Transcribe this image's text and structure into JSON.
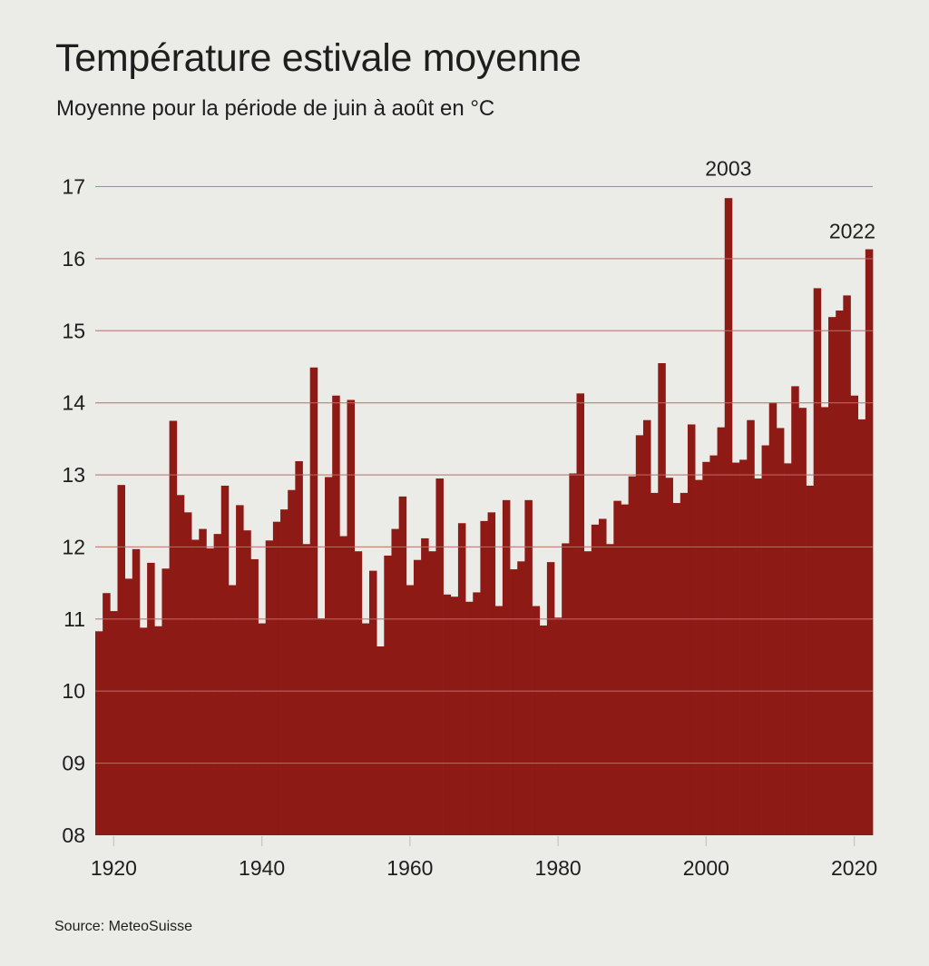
{
  "header": {
    "title": "Température estivale moyenne",
    "subtitle": "Moyenne pour la période de juin à août en °C"
  },
  "footer": {
    "source": "Source: MeteoSuisse"
  },
  "colors": {
    "background": "#ebebe7",
    "bar": "#8e1a16",
    "grid": "#c6c6c2",
    "grid_over_bar": "#c4756f",
    "text": "#1e1e1e"
  },
  "chart_data": {
    "type": "bar",
    "title": "Température estivale moyenne",
    "subtitle": "Moyenne pour la période de juin à août en °C",
    "xlabel": "",
    "ylabel": "",
    "ylim": [
      8,
      17
    ],
    "xlim": [
      1918,
      2022
    ],
    "grid": true,
    "y_ticks": [
      8,
      9,
      10,
      11,
      12,
      13,
      14,
      15,
      16,
      17
    ],
    "y_tick_labels": [
      "08",
      "09",
      "10",
      "11",
      "12",
      "13",
      "14",
      "15",
      "16",
      "17"
    ],
    "x_ticks": [
      1920,
      1940,
      1960,
      1980,
      2000,
      2020
    ],
    "x_tick_labels": [
      "1920",
      "1940",
      "1960",
      "1980",
      "2000",
      "2020"
    ],
    "annotations": [
      {
        "year": 2003,
        "text": "2003"
      },
      {
        "year": 2022,
        "text": "2022"
      }
    ],
    "source": "Source: MeteoSuisse",
    "years": [
      1918,
      1919,
      1920,
      1921,
      1922,
      1923,
      1924,
      1925,
      1926,
      1927,
      1928,
      1929,
      1930,
      1931,
      1932,
      1933,
      1934,
      1935,
      1936,
      1937,
      1938,
      1939,
      1940,
      1941,
      1942,
      1943,
      1944,
      1945,
      1946,
      1947,
      1948,
      1949,
      1950,
      1951,
      1952,
      1953,
      1954,
      1955,
      1956,
      1957,
      1958,
      1959,
      1960,
      1961,
      1962,
      1963,
      1964,
      1965,
      1966,
      1967,
      1968,
      1969,
      1970,
      1971,
      1972,
      1973,
      1974,
      1975,
      1976,
      1977,
      1978,
      1979,
      1980,
      1981,
      1982,
      1983,
      1984,
      1985,
      1986,
      1987,
      1988,
      1989,
      1990,
      1991,
      1992,
      1993,
      1994,
      1995,
      1996,
      1997,
      1998,
      1999,
      2000,
      2001,
      2002,
      2003,
      2004,
      2005,
      2006,
      2007,
      2008,
      2009,
      2010,
      2011,
      2012,
      2013,
      2014,
      2015,
      2016,
      2017,
      2018,
      2019,
      2020,
      2021,
      2022
    ],
    "values": [
      10.83,
      11.36,
      11.11,
      12.86,
      11.56,
      11.97,
      10.88,
      11.78,
      10.9,
      11.7,
      13.75,
      12.72,
      12.48,
      12.1,
      12.25,
      11.98,
      12.18,
      12.85,
      11.47,
      12.58,
      12.23,
      11.83,
      10.94,
      12.09,
      12.35,
      12.52,
      12.79,
      13.19,
      12.04,
      14.49,
      11.01,
      12.97,
      14.1,
      12.15,
      14.04,
      11.94,
      10.94,
      11.67,
      10.62,
      11.88,
      12.25,
      12.7,
      11.47,
      11.82,
      12.12,
      11.94,
      12.95,
      11.34,
      11.31,
      12.33,
      11.24,
      11.37,
      12.36,
      12.48,
      11.18,
      12.65,
      11.69,
      11.8,
      12.65,
      11.18,
      10.91,
      11.79,
      11.02,
      12.05,
      13.02,
      14.13,
      11.94,
      12.31,
      12.39,
      12.04,
      12.64,
      12.59,
      12.98,
      13.55,
      13.76,
      12.75,
      14.55,
      12.96,
      12.61,
      12.75,
      13.7,
      12.93,
      13.18,
      13.27,
      13.66,
      16.84,
      13.17,
      13.21,
      13.76,
      12.95,
      13.41,
      14.0,
      13.65,
      13.16,
      14.23,
      13.93,
      12.85,
      15.59,
      13.94,
      15.19,
      15.28,
      15.49,
      14.1,
      13.77,
      16.13
    ]
  }
}
